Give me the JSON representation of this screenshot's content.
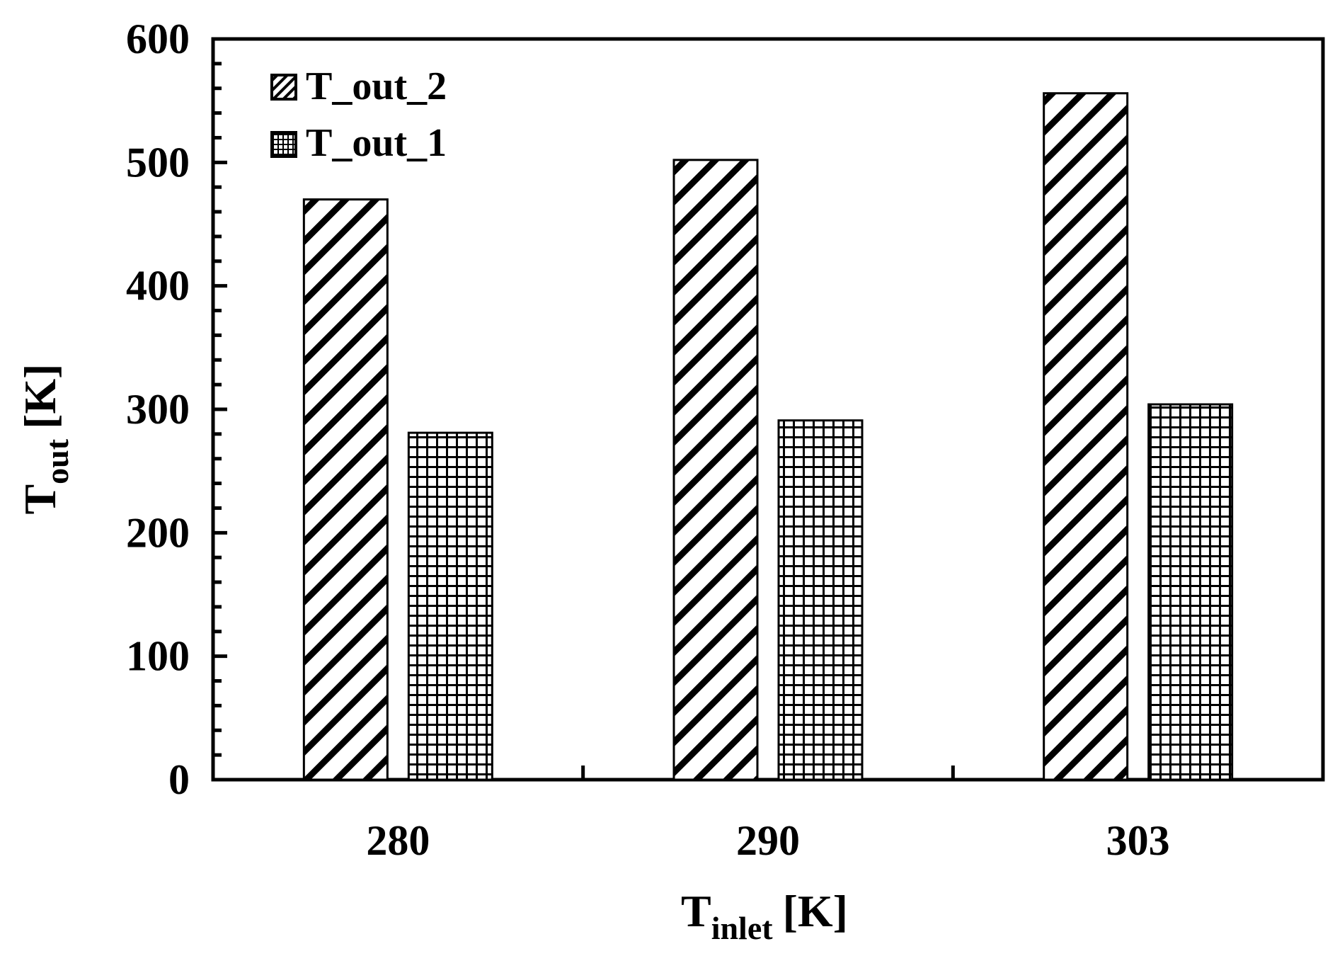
{
  "chart_data": {
    "type": "bar",
    "categories": [
      "280",
      "290",
      "303"
    ],
    "series": [
      {
        "name": "T_out_2",
        "values": [
          470,
          502,
          556
        ],
        "pattern": "diagonal-hatch"
      },
      {
        "name": "T_out_1",
        "values": [
          281,
          291,
          304
        ],
        "pattern": "grid-hatch"
      }
    ],
    "ylim": [
      0,
      600
    ],
    "yticks": [
      "0",
      "100",
      "200",
      "300",
      "400",
      "500",
      "600"
    ],
    "xlabel": {
      "main": "T",
      "sub": "inlet",
      "unit": "[K]"
    },
    "ylabel": {
      "main": "T",
      "sub": "out",
      "unit": "[K]"
    },
    "legend_position": "top-left",
    "grid": false,
    "colors": {
      "ink": "#000000",
      "background": "#ffffff"
    }
  }
}
